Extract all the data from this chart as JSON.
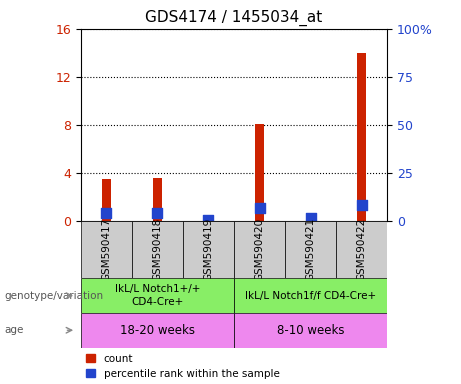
{
  "title": "GDS4174 / 1455034_at",
  "samples": [
    "GSM590417",
    "GSM590418",
    "GSM590419",
    "GSM590420",
    "GSM590421",
    "GSM590422"
  ],
  "count_values": [
    3.5,
    3.6,
    0.05,
    8.05,
    0.5,
    14.0
  ],
  "percentile_values": [
    4.1,
    4.0,
    0.3,
    6.9,
    1.6,
    8.0
  ],
  "left_ylim": [
    0,
    16
  ],
  "right_ylim": [
    0,
    100
  ],
  "left_yticks": [
    0,
    4,
    8,
    12,
    16
  ],
  "right_yticks": [
    0,
    25,
    50,
    75,
    100
  ],
  "right_yticklabels": [
    "0",
    "25",
    "50",
    "75",
    "100%"
  ],
  "bar_color_red": "#cc2200",
  "bar_color_blue": "#2244cc",
  "bar_width": 0.18,
  "blue_marker_size": 60,
  "genotype_groups": [
    {
      "label": "IkL/L Notch1+/+\nCD4-Cre+",
      "start": 0,
      "end": 3,
      "color": "#88ee66"
    },
    {
      "label": "IkL/L Notch1f/f CD4-Cre+",
      "start": 3,
      "end": 6,
      "color": "#88ee66"
    }
  ],
  "age_groups": [
    {
      "label": "18-20 weeks",
      "start": 0,
      "end": 3,
      "color": "#ee88ee"
    },
    {
      "label": "8-10 weeks",
      "start": 3,
      "end": 6,
      "color": "#ee88ee"
    }
  ],
  "genotype_label": "genotype/variation",
  "age_label": "age",
  "legend_count": "count",
  "legend_percentile": "percentile rank within the sample",
  "sample_bg_color": "#cccccc",
  "title_fontsize": 11,
  "tick_fontsize": 9,
  "annotation_fontsize": 9,
  "label_fontsize": 8.5
}
